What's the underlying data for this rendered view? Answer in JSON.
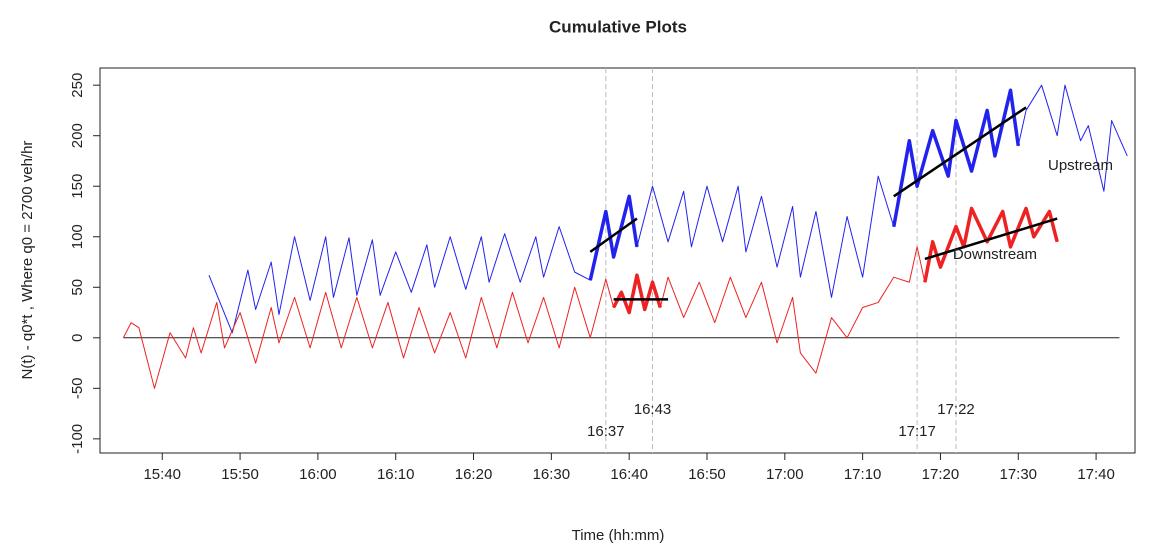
{
  "chart_data": {
    "type": "line",
    "title": "Cumulative Plots",
    "x_label": "Time (hh:mm)",
    "y_label": "N(t) - q0*t , Where q0 = 2700 veh/hr",
    "xlim": [
      "15:32",
      "17:45"
    ],
    "ylim": [
      -114,
      267
    ],
    "xticks": [
      "15:40",
      "15:50",
      "16:00",
      "16:10",
      "16:20",
      "16:30",
      "16:40",
      "16:50",
      "17:00",
      "17:10",
      "17:20",
      "17:30",
      "17:40"
    ],
    "yticks": [
      -100,
      -50,
      0,
      50,
      100,
      150,
      200,
      250
    ],
    "hline": 0,
    "vlines": [
      "16:37",
      "16:43",
      "17:17",
      "17:22"
    ],
    "annotations": [
      {
        "text": "Upstream",
        "color": "#2222ee",
        "x": "17:38",
        "y": 170
      },
      {
        "text": "Downstream",
        "color": "#ee2222",
        "x": "17:27",
        "y": 82
      }
    ],
    "series": [
      {
        "color": "#2222ee",
        "width": 1,
        "x": [
          "15:46",
          "15:49",
          "15:51",
          "15:52",
          "15:54",
          "15:55",
          "15:57",
          "15:59",
          "16:01",
          "16:02",
          "16:04",
          "16:05",
          "16:07",
          "16:08",
          "16:10",
          "16:12",
          "16:14",
          "16:15",
          "16:17",
          "16:19",
          "16:21",
          "16:22",
          "16:24",
          "16:26",
          "16:28",
          "16:29",
          "16:31",
          "16:33",
          "16:35",
          "16:37",
          "16:38",
          "16:40",
          "16:41",
          "16:43",
          "16:45",
          "16:47",
          "16:48",
          "16:50",
          "16:52",
          "16:54",
          "16:55",
          "16:57",
          "16:59",
          "17:01",
          "17:02",
          "17:04",
          "17:06",
          "17:08",
          "17:10",
          "17:12",
          "17:14",
          "17:16",
          "17:17",
          "17:19",
          "17:21",
          "17:22",
          "17:24",
          "17:26",
          "17:27",
          "17:29",
          "17:30",
          "17:31",
          "17:33",
          "17:35",
          "17:36",
          "17:38",
          "17:39",
          "17:41",
          "17:42",
          "17:44"
        ],
        "values": [
          62,
          5,
          67,
          28,
          75,
          23,
          100,
          37,
          100,
          40,
          99,
          42,
          97,
          42,
          85,
          45,
          92,
          50,
          100,
          48,
          100,
          55,
          103,
          55,
          100,
          60,
          110,
          65,
          57,
          125,
          80,
          140,
          90,
          150,
          95,
          145,
          90,
          150,
          95,
          150,
          85,
          140,
          70,
          130,
          60,
          125,
          40,
          120,
          60,
          160,
          110,
          195,
          150,
          205,
          160,
          215,
          165,
          225,
          180,
          245,
          190,
          225,
          250,
          200,
          250,
          195,
          210,
          145,
          215,
          180
        ]
      },
      {
        "color": "#ee2222",
        "width": 1,
        "x": [
          "15:35",
          "15:36",
          "15:37",
          "15:39",
          "15:41",
          "15:43",
          "15:44",
          "15:45",
          "15:47",
          "15:48",
          "15:50",
          "15:52",
          "15:54",
          "15:55",
          "15:57",
          "15:59",
          "16:01",
          "16:03",
          "16:05",
          "16:07",
          "16:09",
          "16:11",
          "16:13",
          "16:15",
          "16:17",
          "16:19",
          "16:21",
          "16:23",
          "16:25",
          "16:27",
          "16:29",
          "16:31",
          "16:33",
          "16:35",
          "16:37",
          "16:38",
          "16:39",
          "16:40",
          "16:41",
          "16:42",
          "16:43",
          "16:44",
          "16:45",
          "16:47",
          "16:49",
          "16:51",
          "16:53",
          "16:55",
          "16:57",
          "16:59",
          "17:01",
          "17:02",
          "17:04",
          "17:06",
          "17:08",
          "17:10",
          "17:12",
          "17:14",
          "17:16",
          "17:17",
          "17:18",
          "17:19",
          "17:20",
          "17:22",
          "17:23",
          "17:24",
          "17:26",
          "17:28",
          "17:29",
          "17:31",
          "17:32",
          "17:34",
          "17:35"
        ],
        "values": [
          0,
          15,
          10,
          -50,
          5,
          -20,
          10,
          -15,
          35,
          -10,
          25,
          -25,
          30,
          -5,
          40,
          -10,
          45,
          -10,
          40,
          -10,
          35,
          -20,
          30,
          -15,
          25,
          -20,
          40,
          -10,
          45,
          -5,
          40,
          -10,
          50,
          0,
          58,
          30,
          45,
          25,
          62,
          28,
          55,
          30,
          60,
          20,
          55,
          15,
          60,
          20,
          55,
          -5,
          40,
          -15,
          -35,
          20,
          0,
          30,
          35,
          60,
          55,
          90,
          55,
          95,
          70,
          110,
          90,
          128,
          95,
          125,
          90,
          128,
          100,
          125,
          95
        ]
      },
      {
        "color": "#2222ee",
        "width": 3.5,
        "x": [
          "16:35",
          "16:37",
          "16:38",
          "16:40",
          "16:41"
        ],
        "values": [
          57,
          125,
          80,
          140,
          90
        ]
      },
      {
        "color": "#2222ee",
        "width": 3.5,
        "x": [
          "17:14",
          "17:16",
          "17:17",
          "17:19",
          "17:21",
          "17:22",
          "17:24",
          "17:26",
          "17:27",
          "17:29",
          "17:30"
        ],
        "values": [
          110,
          195,
          150,
          205,
          160,
          215,
          165,
          225,
          180,
          245,
          190
        ]
      },
      {
        "color": "#ee2222",
        "width": 3.5,
        "x": [
          "16:38",
          "16:39",
          "16:40",
          "16:41",
          "16:42",
          "16:43",
          "16:44"
        ],
        "values": [
          30,
          45,
          25,
          62,
          28,
          55,
          30
        ]
      },
      {
        "color": "#ee2222",
        "width": 3.5,
        "x": [
          "17:18",
          "17:19",
          "17:20",
          "17:22",
          "17:23",
          "17:24",
          "17:26",
          "17:28",
          "17:29",
          "17:31",
          "17:32",
          "17:34",
          "17:35"
        ],
        "values": [
          55,
          95,
          70,
          110,
          90,
          128,
          95,
          125,
          90,
          128,
          100,
          125,
          95
        ]
      },
      {
        "color": "#000000",
        "width": 2.5,
        "x": [
          "16:35",
          "16:41"
        ],
        "values": [
          85,
          118
        ]
      },
      {
        "color": "#000000",
        "width": 2.5,
        "x": [
          "16:38",
          "16:45"
        ],
        "values": [
          38,
          38
        ]
      },
      {
        "color": "#000000",
        "width": 2.5,
        "x": [
          "17:14",
          "17:31"
        ],
        "values": [
          140,
          228
        ]
      },
      {
        "color": "#000000",
        "width": 2.5,
        "x": [
          "17:18",
          "17:35"
        ],
        "values": [
          78,
          118
        ]
      }
    ]
  }
}
